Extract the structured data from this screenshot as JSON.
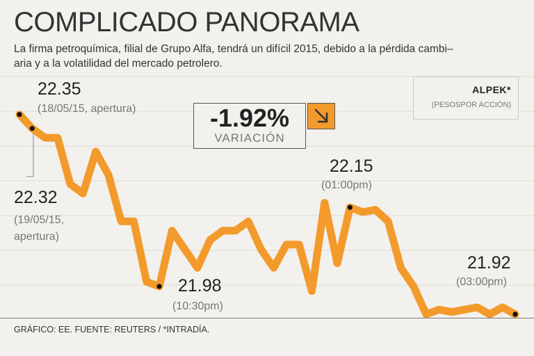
{
  "header": {
    "title": "COMPLICADO PANORAMA",
    "subtitle_line1": "La firma petroquímica, filial de Grupo Alfa, tendrá un difícil 2015, debido a la pérdida cambi–",
    "subtitle_line2": "aria y a la volatilidad del mercado petrolero."
  },
  "info": {
    "ticker": "ALPEK*",
    "units": "(PESOSPOR ACCIÓN)"
  },
  "variation": {
    "value": "-1.92%",
    "label": "VARIACIÓN",
    "icon": "arrow-down-right-icon",
    "accent": "#f39a2c"
  },
  "annotations": [
    {
      "value": "22.35",
      "label": "(18/05/15, apertura)"
    },
    {
      "value": "22.32",
      "label1": "(19/05/15,",
      "label2": "apertura)"
    },
    {
      "value": "21.98",
      "label": "(10:30pm)"
    },
    {
      "value": "22.15",
      "label": "(01:00pm)"
    },
    {
      "value": "21.92",
      "label": "(03:00pm)"
    }
  ],
  "footer": {
    "source": "GRÁFICO: EE. FUENTE: REUTERS / *INTRADÍA."
  },
  "chart_data": {
    "type": "line",
    "title": "COMPLICADO PANORAMA",
    "series": [
      {
        "name": "ALPEK*",
        "color": "#f39a2c",
        "x": [
          0,
          1,
          2,
          3,
          4,
          5,
          6,
          7,
          8,
          9,
          10,
          11,
          12,
          13,
          14,
          15,
          16,
          17,
          18,
          19,
          20,
          21,
          22,
          23,
          24,
          25,
          26,
          27,
          28,
          29,
          30,
          31,
          32,
          33,
          34,
          35,
          36,
          37,
          38,
          39
        ],
        "values": [
          22.35,
          22.32,
          22.3,
          22.3,
          22.2,
          22.18,
          22.27,
          22.22,
          22.12,
          22.12,
          21.99,
          21.98,
          22.1,
          22.06,
          22.02,
          22.08,
          22.1,
          22.1,
          22.12,
          22.06,
          22.02,
          22.07,
          22.07,
          21.97,
          22.16,
          22.03,
          22.15,
          22.14,
          22.145,
          22.12,
          22.02,
          21.98,
          21.92,
          21.93,
          21.925,
          21.93,
          21.935,
          21.92,
          21.935,
          21.92
        ]
      }
    ],
    "highlights": [
      0,
      1,
      11,
      26,
      39
    ],
    "ylim": [
      21.92,
      22.36
    ],
    "grid": true,
    "legend": "none"
  }
}
